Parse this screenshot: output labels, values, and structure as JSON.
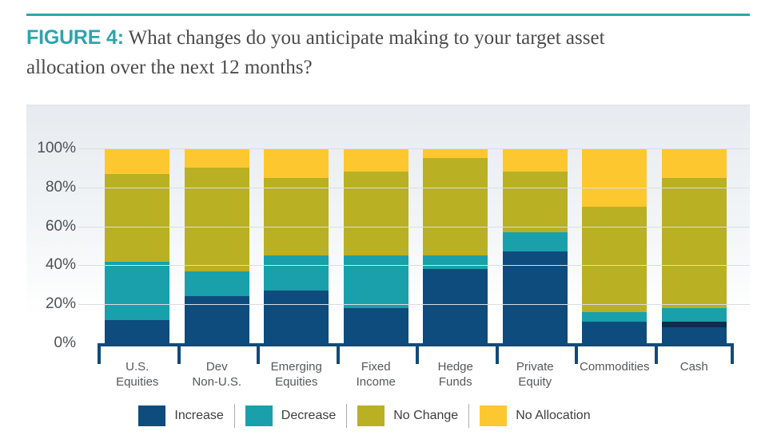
{
  "figure": {
    "label": "FIGURE 4:",
    "title_line1": "What changes do you anticipate making to your target asset",
    "title_line2": "allocation over the next 12 months?"
  },
  "chart_data": {
    "type": "bar",
    "stacked": true,
    "title": "What changes do you anticipate making to your target asset allocation over the next 12 months?",
    "unit": "percent",
    "ylim": [
      0,
      100
    ],
    "y_ticks": [
      "100%",
      "80%",
      "60%",
      "40%",
      "20%",
      "0%"
    ],
    "grid": true,
    "legend_position": "bottom",
    "categories": [
      "U.S. Equities",
      "Dev Non-U.S.",
      "Emerging Equities",
      "Fixed Income",
      "Hedge Funds",
      "Private Equity",
      "Commodities",
      "Cash"
    ],
    "label_lines": [
      [
        "U.S.",
        "Equities"
      ],
      [
        "Dev",
        "Non-U.S."
      ],
      [
        "Emerging",
        "Equities"
      ],
      [
        "Fixed",
        "Income"
      ],
      [
        "Hedge",
        "Funds"
      ],
      [
        "Private",
        "Equity"
      ],
      [
        "Commodities"
      ],
      [
        "Cash"
      ]
    ],
    "series": [
      {
        "name": "Increase",
        "color": "#0d4c7c",
        "in_legend": true,
        "values": [
          12,
          24,
          27,
          18,
          38,
          47,
          11,
          8
        ]
      },
      {
        "name": "Increase (dark stripe)",
        "color": "#0c2d4d",
        "in_legend": false,
        "values": [
          0,
          0,
          0,
          0,
          0,
          0,
          0,
          3
        ]
      },
      {
        "name": "Decrease",
        "color": "#19a0aa",
        "in_legend": true,
        "values": [
          30,
          13,
          18,
          27,
          7,
          10,
          5,
          7
        ]
      },
      {
        "name": "No Change",
        "color": "#b9b024",
        "in_legend": true,
        "values": [
          45,
          53,
          40,
          43,
          50,
          31,
          54,
          67
        ]
      },
      {
        "name": "No Allocation",
        "color": "#fdc72f",
        "in_legend": true,
        "values": [
          13,
          10,
          15,
          12,
          5,
          12,
          30,
          15
        ]
      }
    ]
  },
  "colors": {
    "accent_teal": "#2aa7ae",
    "figure_label": "#2ba5ad",
    "title_text": "#4a4a4a",
    "axis_bracket": "#124a7a",
    "gridline": "#d9dee3",
    "axis_label_gray": "#55575a",
    "panel_top": "#e7ebef"
  }
}
